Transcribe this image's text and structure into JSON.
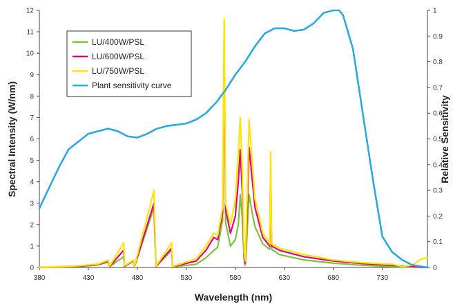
{
  "chart_data": {
    "type": "line",
    "title": "",
    "xlabel": "Wavelength (nm)",
    "ylabel": "Spectral Intensity (W/nm)",
    "y2label": "Relative Sensitivity",
    "xlim": [
      380,
      776
    ],
    "ylim": [
      0,
      12
    ],
    "y2lim": [
      0,
      1
    ],
    "x_ticks": [
      "380",
      "430",
      "480",
      "530",
      "580",
      "630",
      "680",
      "730"
    ],
    "y_ticks": [
      "0",
      "1",
      "2",
      "3",
      "4",
      "5",
      "6",
      "7",
      "8",
      "9",
      "10",
      "11",
      "12"
    ],
    "y2_ticks": [
      "0",
      "0.1",
      "0.2",
      "0.3",
      "0.4",
      "0.5",
      "0.6",
      "0.7",
      "0.8",
      "0.9",
      "1"
    ],
    "legend_position": "top-left",
    "grid": false,
    "series": [
      {
        "name": "LU/400W/PSL",
        "color": "#7dc242",
        "axis": "left",
        "points": [
          [
            380,
            0
          ],
          [
            420,
            0.04
          ],
          [
            440,
            0.12
          ],
          [
            450,
            0.25
          ],
          [
            452,
            0.05
          ],
          [
            466,
            0.5
          ],
          [
            467,
            0.05
          ],
          [
            476,
            0.3
          ],
          [
            477,
            0.03
          ],
          [
            497,
            2.8
          ],
          [
            499,
            0.04
          ],
          [
            515,
            0.8
          ],
          [
            516,
            0.03
          ],
          [
            540,
            0.15
          ],
          [
            550,
            0.45
          ],
          [
            558,
            0.8
          ],
          [
            562,
            0.95
          ],
          [
            567,
            2.2
          ],
          [
            568.6,
            9.3
          ],
          [
            570,
            2.1
          ],
          [
            575,
            1.0
          ],
          [
            580,
            1.3
          ],
          [
            583,
            2.0
          ],
          [
            585,
            3.4
          ],
          [
            587,
            2.3
          ],
          [
            589,
            0.3
          ],
          [
            590,
            0.1
          ],
          [
            591,
            0.7
          ],
          [
            594,
            3.4
          ],
          [
            597,
            2.6
          ],
          [
            600,
            1.9
          ],
          [
            608,
            1.1
          ],
          [
            615,
            0.85
          ],
          [
            616,
            3.8
          ],
          [
            617,
            0.85
          ],
          [
            625,
            0.6
          ],
          [
            650,
            0.35
          ],
          [
            680,
            0.2
          ],
          [
            710,
            0.1
          ],
          [
            740,
            0.04
          ],
          [
            776,
            0
          ]
        ]
      },
      {
        "name": "LU/600W/PSL",
        "color": "#e6007e",
        "axis": "left",
        "points": [
          [
            380,
            0
          ],
          [
            420,
            0.06
          ],
          [
            440,
            0.14
          ],
          [
            450,
            0.3
          ],
          [
            452,
            0.06
          ],
          [
            466,
            0.8
          ],
          [
            467,
            0.06
          ],
          [
            476,
            0.32
          ],
          [
            477,
            0.04
          ],
          [
            497,
            3.0
          ],
          [
            499,
            0.05
          ],
          [
            515,
            0.9
          ],
          [
            516,
            0.04
          ],
          [
            540,
            0.3
          ],
          [
            550,
            0.8
          ],
          [
            558,
            1.4
          ],
          [
            562,
            1.3
          ],
          [
            567,
            2.6
          ],
          [
            568.6,
            10.3
          ],
          [
            570,
            2.7
          ],
          [
            575,
            1.6
          ],
          [
            580,
            2.4
          ],
          [
            583,
            4.0
          ],
          [
            585,
            5.5
          ],
          [
            587,
            3.6
          ],
          [
            589,
            0.5
          ],
          [
            590,
            0.2
          ],
          [
            591,
            1.2
          ],
          [
            594,
            5.6
          ],
          [
            597,
            4.2
          ],
          [
            600,
            2.8
          ],
          [
            608,
            1.4
          ],
          [
            615,
            1.0
          ],
          [
            616,
            4.6
          ],
          [
            617,
            1.0
          ],
          [
            625,
            0.8
          ],
          [
            650,
            0.5
          ],
          [
            680,
            0.3
          ],
          [
            710,
            0.18
          ],
          [
            740,
            0.1
          ],
          [
            776,
            0
          ]
        ]
      },
      {
        "name": "LU/750W/PSL",
        "color": "#ffe600",
        "axis": "left",
        "points": [
          [
            380,
            0
          ],
          [
            420,
            0.08
          ],
          [
            440,
            0.16
          ],
          [
            450,
            0.34
          ],
          [
            452,
            0.08
          ],
          [
            466,
            1.15
          ],
          [
            467,
            0.08
          ],
          [
            476,
            0.35
          ],
          [
            477,
            0.05
          ],
          [
            497,
            3.6
          ],
          [
            499,
            0.06
          ],
          [
            515,
            1.15
          ],
          [
            516,
            0.05
          ],
          [
            540,
            0.4
          ],
          [
            550,
            1.0
          ],
          [
            558,
            1.6
          ],
          [
            562,
            1.5
          ],
          [
            567,
            2.8
          ],
          [
            568.6,
            11.6
          ],
          [
            570,
            3.0
          ],
          [
            575,
            2.0
          ],
          [
            580,
            3.2
          ],
          [
            583,
            5.4
          ],
          [
            585,
            7.0
          ],
          [
            587,
            4.6
          ],
          [
            589,
            0.7
          ],
          [
            590,
            0.3
          ],
          [
            591,
            1.6
          ],
          [
            594,
            6.9
          ],
          [
            597,
            5.0
          ],
          [
            600,
            3.2
          ],
          [
            608,
            1.6
          ],
          [
            615,
            1.1
          ],
          [
            616,
            5.4
          ],
          [
            617,
            1.1
          ],
          [
            625,
            0.9
          ],
          [
            650,
            0.6
          ],
          [
            680,
            0.35
          ],
          [
            710,
            0.22
          ],
          [
            740,
            0.15
          ],
          [
            750,
            0.05
          ],
          [
            760,
            0.1
          ],
          [
            770,
            0.4
          ],
          [
            776,
            0.45
          ]
        ]
      },
      {
        "name": "Plant sensitivity curve",
        "color": "#2fa8dc",
        "axis": "right",
        "points": [
          [
            380,
            0.23
          ],
          [
            390,
            0.31
          ],
          [
            400,
            0.39
          ],
          [
            410,
            0.46
          ],
          [
            420,
            0.49
          ],
          [
            430,
            0.52
          ],
          [
            440,
            0.53
          ],
          [
            450,
            0.54
          ],
          [
            460,
            0.53
          ],
          [
            470,
            0.51
          ],
          [
            480,
            0.505
          ],
          [
            490,
            0.52
          ],
          [
            500,
            0.54
          ],
          [
            510,
            0.55
          ],
          [
            520,
            0.555
          ],
          [
            530,
            0.56
          ],
          [
            540,
            0.575
          ],
          [
            550,
            0.6
          ],
          [
            560,
            0.64
          ],
          [
            570,
            0.69
          ],
          [
            580,
            0.75
          ],
          [
            590,
            0.8
          ],
          [
            600,
            0.86
          ],
          [
            610,
            0.91
          ],
          [
            620,
            0.93
          ],
          [
            630,
            0.93
          ],
          [
            640,
            0.92
          ],
          [
            650,
            0.925
          ],
          [
            660,
            0.95
          ],
          [
            670,
            0.99
          ],
          [
            680,
            1.0
          ],
          [
            686,
            1.0
          ],
          [
            690,
            0.98
          ],
          [
            700,
            0.85
          ],
          [
            710,
            0.6
          ],
          [
            720,
            0.35
          ],
          [
            730,
            0.12
          ],
          [
            740,
            0.06
          ],
          [
            750,
            0.03
          ],
          [
            760,
            0.01
          ],
          [
            776,
            0
          ]
        ]
      }
    ]
  }
}
